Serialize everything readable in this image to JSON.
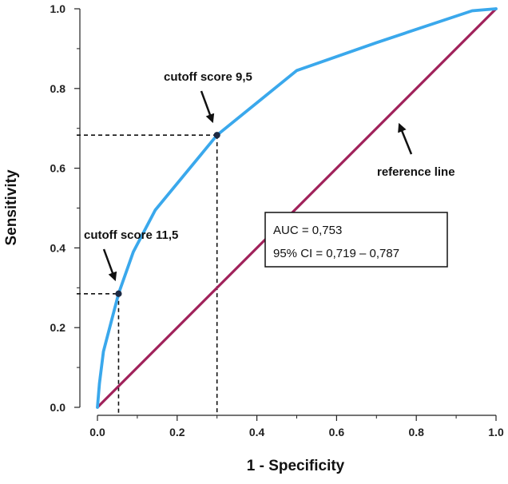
{
  "chart_data": {
    "type": "line",
    "xlabel": "1 - Specificity",
    "ylabel": "Sensitivity",
    "xlim": [
      0,
      1
    ],
    "ylim": [
      0,
      1
    ],
    "x_ticks": [
      "0.0",
      "0.2",
      "0.4",
      "0.6",
      "0.8",
      "1.0"
    ],
    "y_ticks": [
      "0.0",
      "0.2",
      "0.4",
      "0.6",
      "0.8",
      "1.0"
    ],
    "grid": false,
    "series": [
      {
        "name": "",
        "color": "#3aa8ec",
        "x": [
          0,
          0.005,
          0.015,
          0.053,
          0.09,
          0.145,
          0.3,
          0.5,
          0.7,
          0.94,
          1.0
        ],
        "y": [
          0,
          0.06,
          0.14,
          0.285,
          0.39,
          0.495,
          0.683,
          0.845,
          0.915,
          0.995,
          1.0
        ]
      },
      {
        "name": "reference line",
        "color": "#a0215a",
        "x": [
          0,
          1
        ],
        "y": [
          0,
          1
        ]
      }
    ],
    "cutoffs": [
      {
        "label": "cutoff score 9,5",
        "x": 0.3,
        "y": 0.683
      },
      {
        "label": "cutoff score 11,5",
        "x": 0.053,
        "y": 0.285
      }
    ],
    "reference_label": "reference line",
    "stats_box": {
      "line1": "AUC = 0,753",
      "line2": "95% CI = 0,719 – 0,787"
    }
  }
}
